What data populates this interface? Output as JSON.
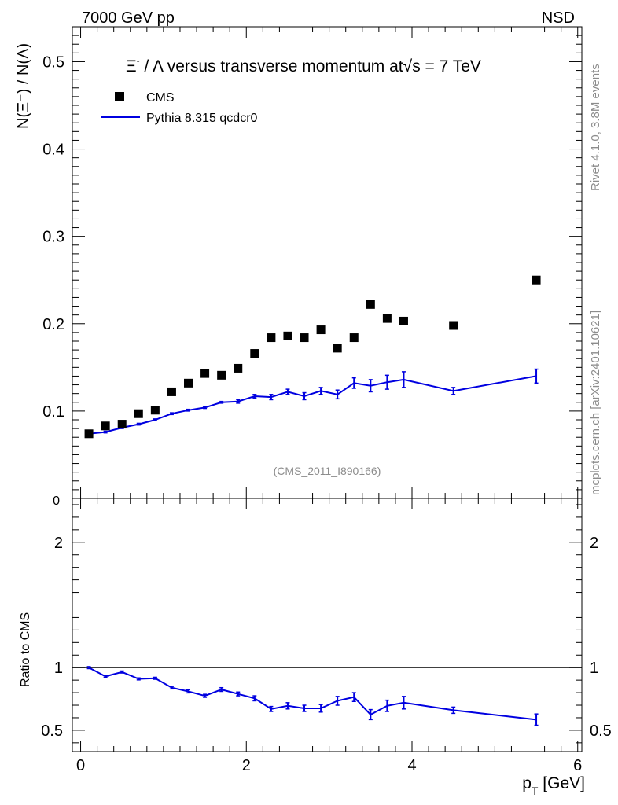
{
  "header": {
    "energy_label": "7000 GeV pp",
    "process_label": "NSD"
  },
  "side_labels": {
    "rivet": "Rivet 4.1.0,  3.8M events",
    "mcplots": "mcplots.cern.ch [arXiv:2401.10621]"
  },
  "chart_data": [
    {
      "type": "scatter",
      "panel": "main",
      "title": {
        "xi": "Ξ",
        "xi_sup": "-",
        "mid": " / Λ versus transverse momentum at",
        "sqrt": "√",
        "s_part": "s = 7 TeV"
      },
      "ylabel": "N(Ξ⁻)  /  N(Λ)",
      "ylim": [
        0,
        0.54
      ],
      "yticks": [
        {
          "value": 0.1,
          "label": "0.1"
        },
        {
          "value": 0.2,
          "label": "0.2"
        },
        {
          "value": 0.3,
          "label": "0.3"
        },
        {
          "value": 0.4,
          "label": "0.4"
        },
        {
          "value": 0.5,
          "label": "0.5"
        }
      ],
      "ycut_label": "0",
      "watermark": "(CMS_2011_I890166)",
      "legend_position": "top-left",
      "series": [
        {
          "name": "CMS",
          "style": "markers",
          "color": "#000000",
          "x": [
            0.1,
            0.3,
            0.5,
            0.7,
            0.9,
            1.1,
            1.3,
            1.5,
            1.7,
            1.9,
            2.1,
            2.3,
            2.5,
            2.7,
            2.9,
            3.1,
            3.3,
            3.5,
            3.7,
            3.9,
            4.5,
            5.5
          ],
          "y": [
            0.074,
            0.083,
            0.085,
            0.097,
            0.101,
            0.122,
            0.132,
            0.143,
            0.141,
            0.149,
            0.166,
            0.184,
            0.186,
            0.184,
            0.193,
            0.172,
            0.184,
            0.222,
            0.206,
            0.203,
            0.198,
            0.25
          ]
        },
        {
          "name": "Pythia 8.315 qcdcr0",
          "style": "line",
          "color": "#0000e0",
          "x": [
            0.1,
            0.3,
            0.5,
            0.7,
            0.9,
            1.1,
            1.3,
            1.5,
            1.7,
            1.9,
            2.1,
            2.3,
            2.5,
            2.7,
            2.9,
            3.1,
            3.3,
            3.5,
            3.7,
            3.9,
            4.5,
            5.5
          ],
          "y": [
            0.074,
            0.076,
            0.081,
            0.085,
            0.09,
            0.097,
            0.101,
            0.104,
            0.11,
            0.111,
            0.117,
            0.116,
            0.122,
            0.117,
            0.123,
            0.119,
            0.132,
            0.129,
            0.133,
            0.136,
            0.123,
            0.14
          ],
          "err": [
            0.001,
            0.001,
            0.001,
            0.001,
            0.001,
            0.001,
            0.001,
            0.001,
            0.001,
            0.002,
            0.002,
            0.003,
            0.003,
            0.004,
            0.004,
            0.005,
            0.006,
            0.007,
            0.008,
            0.009,
            0.004,
            0.008
          ]
        }
      ]
    },
    {
      "type": "line",
      "panel": "ratio",
      "ylabel": "Ratio to CMS",
      "ylim": [
        0.33,
        2.35
      ],
      "xlim": [
        -0.1,
        6.05
      ],
      "xlabel_main": "p",
      "xlabel_sub": "T",
      "xlabel_unit": " [GeV]",
      "yticks": [
        {
          "value": 0.5,
          "label": "0.5"
        },
        {
          "value": 1,
          "label": "1"
        },
        {
          "value": 2,
          "label": "2"
        }
      ],
      "xticks": [
        {
          "value": 0,
          "label": "0"
        },
        {
          "value": 2,
          "label": "2"
        },
        {
          "value": 4,
          "label": "4"
        },
        {
          "value": 6,
          "label": "6"
        }
      ],
      "reference": 1,
      "series": [
        {
          "name": "Pythia 8.315 qcdcr0",
          "color": "#0000e0",
          "x": [
            0.1,
            0.3,
            0.5,
            0.7,
            0.9,
            1.1,
            1.3,
            1.5,
            1.7,
            1.9,
            2.1,
            2.3,
            2.5,
            2.7,
            2.9,
            3.1,
            3.3,
            3.5,
            3.7,
            3.9,
            4.5,
            5.5
          ],
          "y": [
            1.0,
            0.93,
            0.965,
            0.91,
            0.915,
            0.84,
            0.81,
            0.775,
            0.825,
            0.79,
            0.755,
            0.67,
            0.695,
            0.675,
            0.675,
            0.735,
            0.765,
            0.625,
            0.695,
            0.72,
            0.66,
            0.585
          ],
          "err": [
            0.008,
            0.008,
            0.008,
            0.008,
            0.008,
            0.01,
            0.012,
            0.012,
            0.015,
            0.015,
            0.02,
            0.02,
            0.025,
            0.025,
            0.03,
            0.035,
            0.035,
            0.04,
            0.045,
            0.05,
            0.025,
            0.045
          ]
        }
      ]
    }
  ]
}
